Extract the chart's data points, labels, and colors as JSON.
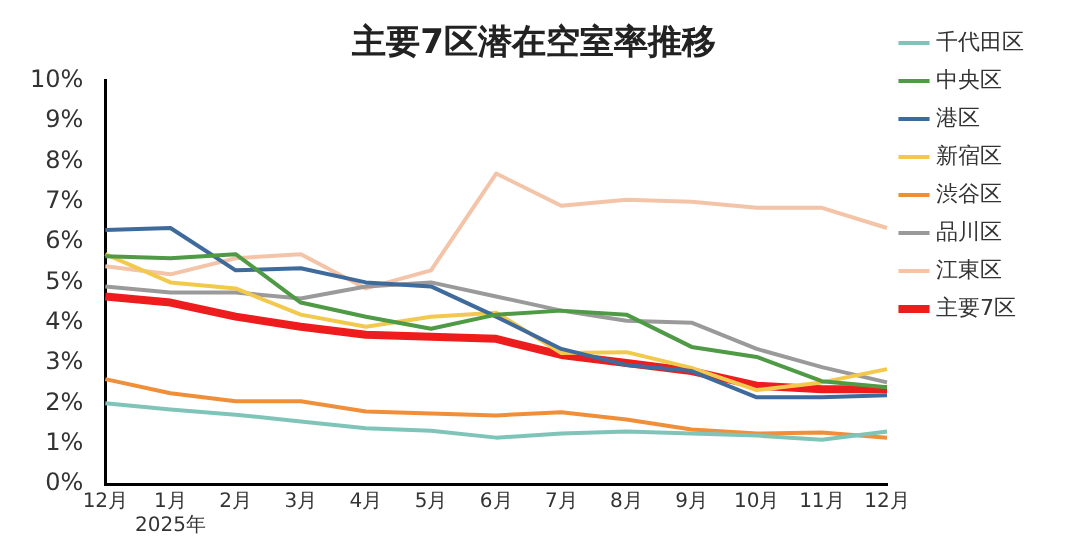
{
  "chart_data": {
    "type": "line",
    "title": "主要7区潜在空室率推移",
    "categories": [
      "12月",
      "1月\n2025年",
      "2月",
      "3月",
      "4月",
      "5月",
      "6月",
      "7月",
      "8月",
      "9月",
      "10月",
      "11月",
      "12月"
    ],
    "series": [
      {
        "name": "千代田区",
        "color": "#7fc4b8",
        "values": [
          2.0,
          1.85,
          1.72,
          1.55,
          1.38,
          1.32,
          1.15,
          1.25,
          1.3,
          1.25,
          1.2,
          1.1,
          1.3
        ]
      },
      {
        "name": "中央区",
        "color": "#4e9a45",
        "values": [
          5.65,
          5.6,
          5.7,
          4.5,
          4.15,
          3.85,
          4.2,
          4.3,
          4.2,
          3.4,
          3.15,
          2.55,
          2.4
        ]
      },
      {
        "name": "港区",
        "color": "#3f6a9c",
        "values": [
          6.3,
          6.35,
          5.3,
          5.35,
          5.0,
          4.9,
          4.15,
          3.35,
          2.95,
          2.8,
          2.15,
          2.15,
          2.2
        ]
      },
      {
        "name": "新宿区",
        "color": "#f2c94c",
        "values": [
          5.7,
          5.0,
          4.85,
          4.2,
          3.9,
          4.15,
          4.25,
          3.25,
          3.27,
          2.88,
          2.33,
          2.52,
          2.85
        ]
      },
      {
        "name": "渋谷区",
        "color": "#ef8f3a",
        "values": [
          2.6,
          2.25,
          2.05,
          2.05,
          1.8,
          1.75,
          1.7,
          1.78,
          1.6,
          1.35,
          1.25,
          1.28,
          1.15
        ]
      },
      {
        "name": "品川区",
        "color": "#9a9a9a",
        "values": [
          4.9,
          4.75,
          4.75,
          4.6,
          4.9,
          5.0,
          4.65,
          4.3,
          4.05,
          4.0,
          3.35,
          2.9,
          2.52
        ]
      },
      {
        "name": "江東区",
        "color": "#f4c4a8",
        "values": [
          5.4,
          5.2,
          5.6,
          5.7,
          4.85,
          5.3,
          7.7,
          6.9,
          7.05,
          7.0,
          6.85,
          6.85,
          6.35
        ]
      },
      {
        "name": "主要7区",
        "color": "#ee1c1c",
        "values": [
          4.65,
          4.5,
          4.15,
          3.9,
          3.7,
          3.65,
          3.6,
          3.2,
          3.0,
          2.8,
          2.44,
          2.35,
          2.35
        ]
      }
    ],
    "ylim": [
      0,
      10
    ],
    "yticks": [
      {
        "value": 0,
        "label": "0%"
      },
      {
        "value": 1,
        "label": "1%"
      },
      {
        "value": 2,
        "label": "2%"
      },
      {
        "value": 3,
        "label": "3%"
      },
      {
        "value": 4,
        "label": "4%"
      },
      {
        "value": 5,
        "label": "5%"
      },
      {
        "value": 6,
        "label": "6%"
      },
      {
        "value": 7,
        "label": "7%"
      },
      {
        "value": 8,
        "label": "8%"
      },
      {
        "value": 9,
        "label": "9%"
      },
      {
        "value": 10,
        "label": "10%"
      }
    ],
    "legend": "right",
    "grid": false,
    "marker": "none",
    "line_style": "solid"
  }
}
